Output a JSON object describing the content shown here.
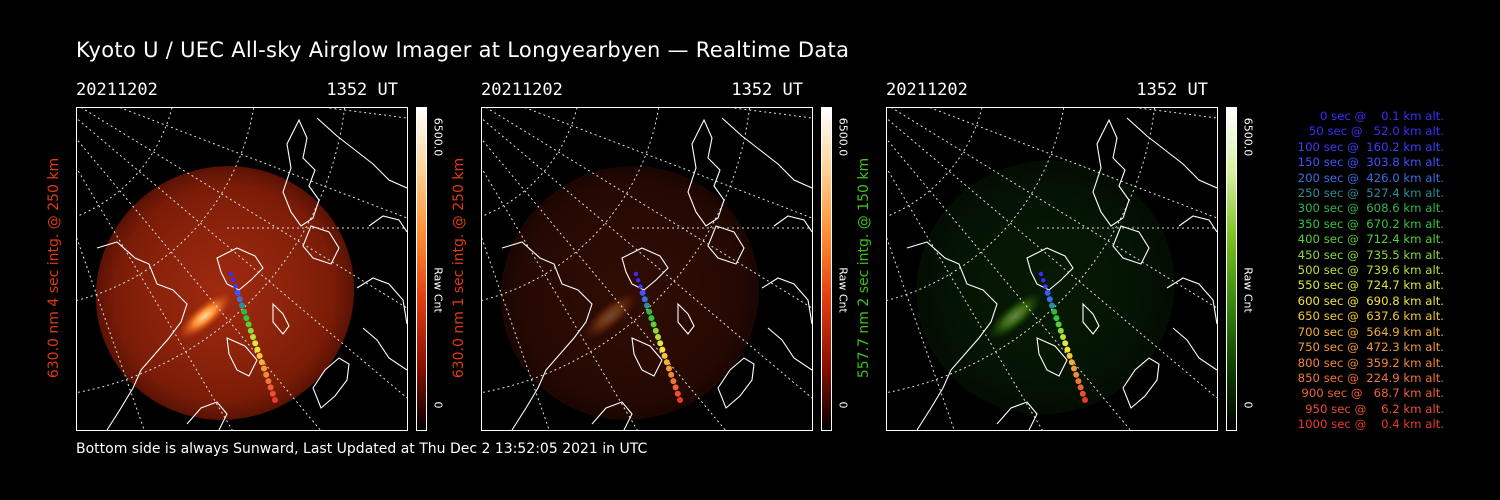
{
  "title": "Kyoto U / UEC All-sky Airglow Imager at Longyearbyen — Realtime Data",
  "footer": "Bottom side is always Sunward, Last Updated at Thu Dec  2 13:52:05 2021 in UTC",
  "colors": {
    "red": "#e03a10",
    "green": "#3cc21a"
  },
  "panels": [
    {
      "date": "20211202",
      "time": "1352 UT",
      "label": "630.0 nm 4 sec intg. @ 250 km",
      "label_color": "#e03a10",
      "cbar_max": "6500.0",
      "cbar_min": "0",
      "cbar_unit": "Raw Cnt",
      "theme": "red",
      "intensity": 1.0
    },
    {
      "date": "20211202",
      "time": "1352 UT",
      "label": "630.0 nm 1 sec intg. @ 250 km",
      "label_color": "#e03a10",
      "cbar_max": "6500.0",
      "cbar_min": "0",
      "cbar_unit": "Raw Cnt",
      "theme": "red",
      "intensity": 0.3
    },
    {
      "date": "20211202",
      "time": "1352 UT",
      "label": "557.7 nm 2 sec intg. @ 150 km",
      "label_color": "#3cc21a",
      "cbar_max": "6500.0",
      "cbar_min": "0",
      "cbar_unit": "Raw Cnt",
      "theme": "green",
      "intensity": 0.45
    }
  ],
  "legend": [
    {
      "text": "   0 sec @    0.1 km alt.",
      "color": "#3b2dff"
    },
    {
      "text": "  50 sec @   52.0 km alt.",
      "color": "#3b2dff"
    },
    {
      "text": " 100 sec @  160.2 km alt.",
      "color": "#3b3dff"
    },
    {
      "text": " 150 sec @  303.8 km alt.",
      "color": "#3b55ff"
    },
    {
      "text": " 200 sec @  426.0 km alt.",
      "color": "#3a6fe0"
    },
    {
      "text": " 250 sec @  527.4 km alt.",
      "color": "#2a8f9a"
    },
    {
      "text": " 300 sec @  608.6 km alt.",
      "color": "#2fb84a"
    },
    {
      "text": " 350 sec @  670.2 km alt.",
      "color": "#33c63a"
    },
    {
      "text": " 400 sec @  712.4 km alt.",
      "color": "#55d03a"
    },
    {
      "text": " 450 sec @  735.5 km alt.",
      "color": "#8ad83a"
    },
    {
      "text": " 500 sec @  739.6 km alt.",
      "color": "#b8e03a"
    },
    {
      "text": " 550 sec @  724.7 km alt.",
      "color": "#dde83a"
    },
    {
      "text": " 600 sec @  690.8 km alt.",
      "color": "#f2e43a"
    },
    {
      "text": " 650 sec @  637.6 km alt.",
      "color": "#f2c83a"
    },
    {
      "text": " 700 sec @  564.9 km alt.",
      "color": "#f2b03a"
    },
    {
      "text": " 750 sec @  472.3 km alt.",
      "color": "#f29a3a"
    },
    {
      "text": " 800 sec @  359.2 km alt.",
      "color": "#f2883a"
    },
    {
      "text": " 850 sec @  224.9 km alt.",
      "color": "#f0743a"
    },
    {
      "text": " 900 sec @   68.7 km alt.",
      "color": "#f0603a"
    },
    {
      "text": " 950 sec @    6.2 km alt.",
      "color": "#ee4e34"
    },
    {
      "text": "1000 sec @    0.4 km alt.",
      "color": "#ec3a2a"
    }
  ]
}
